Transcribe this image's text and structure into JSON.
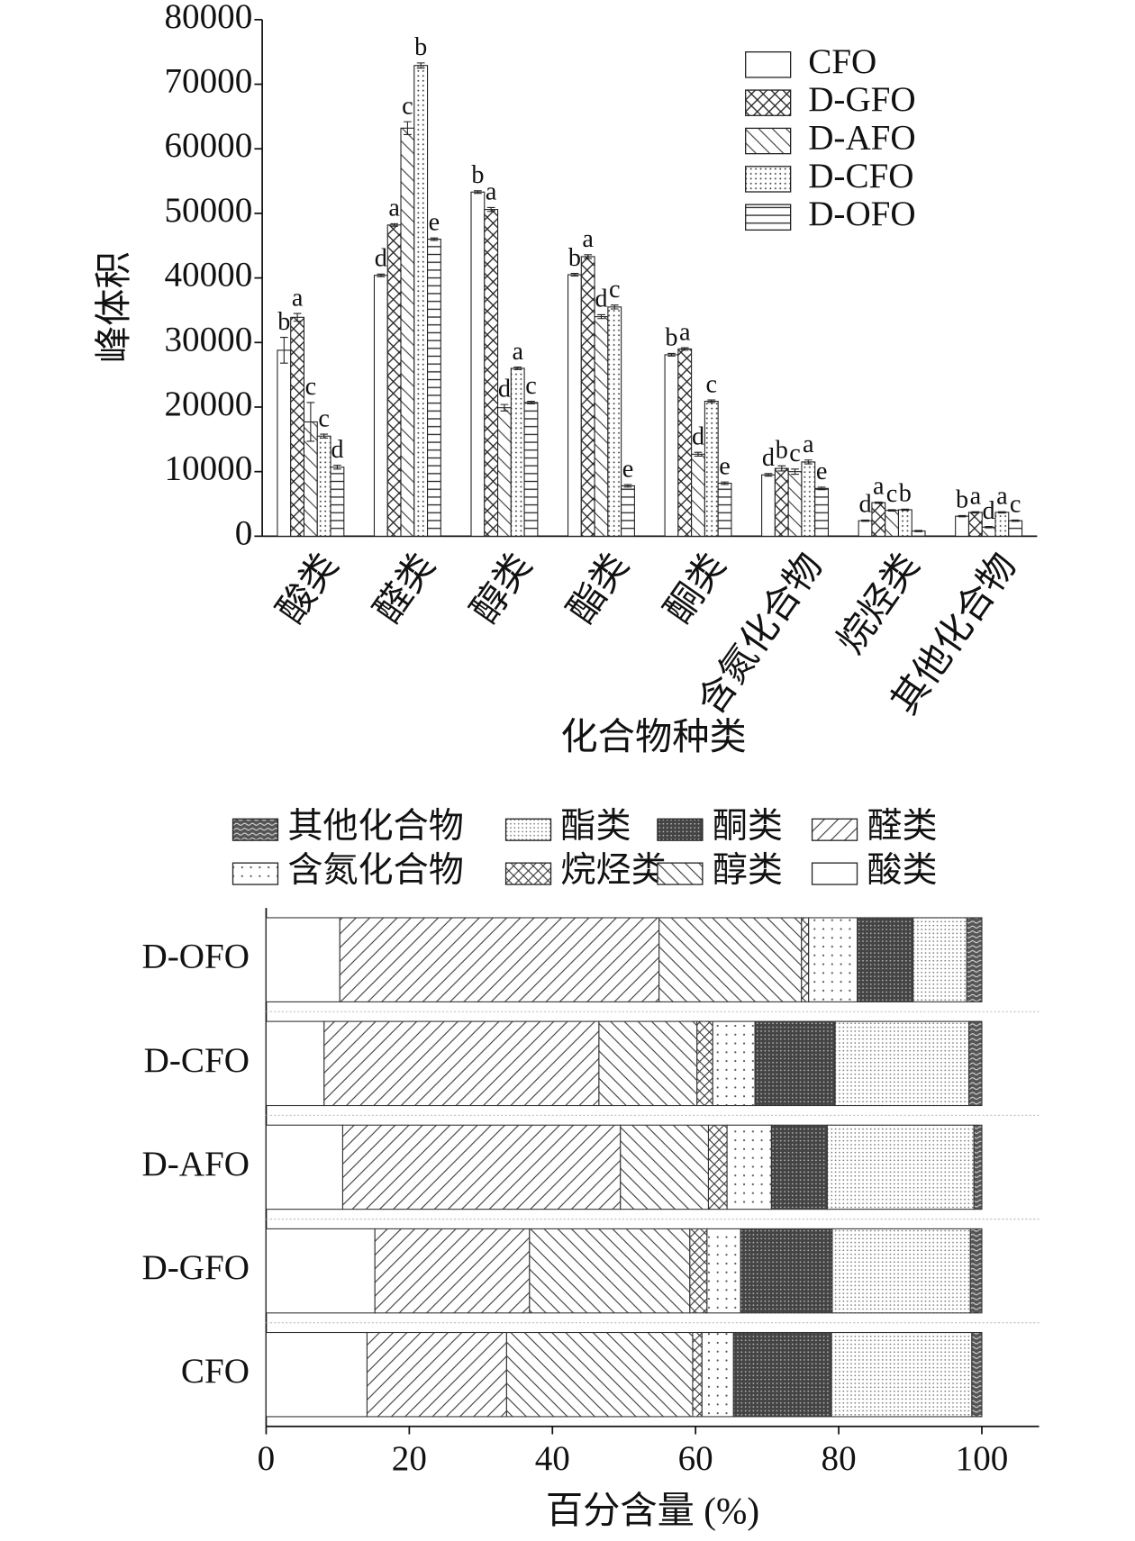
{
  "chart_data": [
    {
      "type": "bar",
      "y_label": "峰体积",
      "x_label": "化合物种类",
      "categories": [
        "酸类",
        "醛类",
        "醇类",
        "酯类",
        "酮类",
        "含氮化合物",
        "烷烃类",
        "其他化合物"
      ],
      "series": [
        {
          "name": "CFO",
          "color": "#ffffff",
          "pattern": "none",
          "values": [
            28800,
            40400,
            53300,
            40500,
            28100,
            9500,
            2400,
            3100
          ],
          "errors": [
            2000,
            200,
            200,
            200,
            200,
            200,
            100,
            100
          ],
          "letters": [
            "b",
            "d",
            "b",
            "b",
            "b",
            "d",
            "d",
            "b"
          ]
        },
        {
          "name": "D-GFO",
          "color": "#ffffff",
          "pattern": "crosshatch",
          "values": [
            33900,
            48200,
            50600,
            43300,
            29000,
            10500,
            5200,
            3700
          ],
          "errors": [
            600,
            200,
            300,
            300,
            200,
            400,
            100,
            100
          ],
          "letters": [
            "a",
            "a",
            "a",
            "a",
            "a",
            "b",
            "a",
            "a"
          ]
        },
        {
          "name": "D-AFO",
          "color": "#ffffff",
          "pattern": "backslash",
          "values": [
            17700,
            63200,
            19900,
            34000,
            12700,
            10000,
            4000,
            1400
          ],
          "errors": [
            3000,
            1000,
            500,
            300,
            300,
            400,
            100,
            100
          ],
          "letters": [
            "c",
            "c",
            "d",
            "d",
            "d",
            "c",
            "c",
            "d"
          ]
        },
        {
          "name": "D-CFO",
          "color": "#ffffff",
          "pattern": "dots",
          "values": [
            15500,
            72900,
            26000,
            35500,
            20900,
            11500,
            4100,
            3700
          ],
          "errors": [
            300,
            400,
            200,
            300,
            200,
            300,
            100,
            100
          ],
          "letters": [
            "c",
            "b",
            "a",
            "c",
            "c",
            "a",
            "b",
            "a"
          ]
        },
        {
          "name": "D-OFO",
          "color": "#ffffff",
          "pattern": "horizontal",
          "values": [
            10700,
            46000,
            20700,
            7800,
            8200,
            7400,
            800,
            2400
          ],
          "errors": [
            300,
            200,
            200,
            200,
            200,
            200,
            100,
            100
          ],
          "letters": [
            "d",
            "e",
            "c",
            "e",
            "e",
            "e",
            null,
            "c"
          ]
        }
      ],
      "ylim": [
        0,
        80000
      ],
      "yticks": [
        0,
        10000,
        20000,
        30000,
        40000,
        50000,
        60000,
        70000,
        80000
      ],
      "legend": "upper right"
    },
    {
      "type": "stacked_barh",
      "x_label": "百分含量 (%)",
      "categories": [
        "CFO",
        "D-GFO",
        "D-AFO",
        "D-CFO",
        "D-OFO"
      ],
      "series": [
        {
          "name": "酸类",
          "color": "#ffffff",
          "pattern": "none",
          "values": [
            14.1,
            15.2,
            10.7,
            8.1,
            10.3
          ]
        },
        {
          "name": "醛类",
          "color": "#ffffff",
          "pattern": "slash",
          "values": [
            19.5,
            21.6,
            38.8,
            38.4,
            44.6
          ]
        },
        {
          "name": "醇类",
          "color": "#ffffff",
          "pattern": "backslash",
          "values": [
            26.0,
            22.4,
            12.3,
            13.7,
            19.9
          ]
        },
        {
          "name": "烷烃类",
          "color": "#ffffff",
          "pattern": "x",
          "values": [
            1.3,
            2.4,
            2.6,
            2.2,
            1.0
          ]
        },
        {
          "name": "含氮化合物",
          "color": "#ffffff",
          "pattern": "sparse-dots",
          "values": [
            4.4,
            4.7,
            6.2,
            5.9,
            6.8
          ]
        },
        {
          "name": "酮类",
          "color": "#ffffff",
          "pattern": "dense",
          "values": [
            13.7,
            12.8,
            7.8,
            11.2,
            7.8
          ]
        },
        {
          "name": "酯类",
          "color": "#ffffff",
          "pattern": "fine-dots",
          "values": [
            19.6,
            19.3,
            20.5,
            18.7,
            7.5
          ]
        },
        {
          "name": "其他化合物",
          "color": "#ffffff",
          "pattern": "wave",
          "values": [
            1.4,
            1.6,
            1.1,
            1.8,
            2.1
          ]
        }
      ],
      "xlim": [
        0,
        108
      ],
      "xticks": [
        0,
        20,
        40,
        60,
        80,
        100
      ],
      "legend": "top"
    }
  ]
}
